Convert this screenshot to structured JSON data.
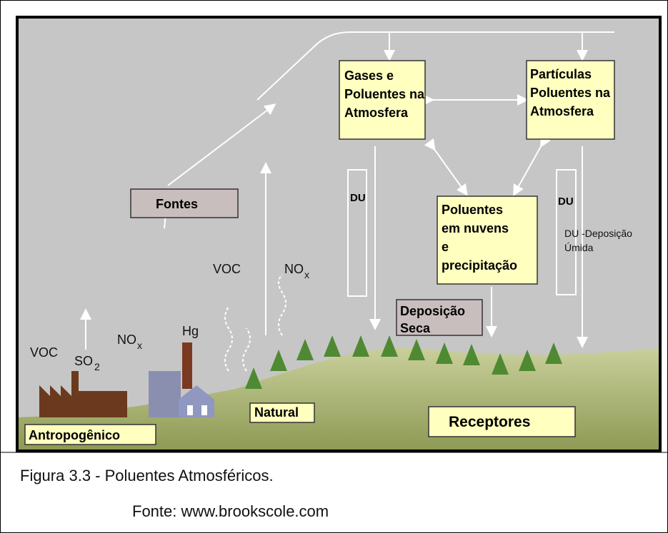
{
  "diagram": {
    "boxes": {
      "gases": [
        "Gases e",
        "Poluentes na",
        "Atmosfera"
      ],
      "particulas": [
        "Partículas",
        "Poluentes na",
        "Atmosfera"
      ],
      "nuvens": [
        "Poluentes",
        "em nuvens",
        "e",
        "precipitação"
      ],
      "fontes": "Fontes",
      "seca": [
        "Deposição",
        "Seca"
      ],
      "natural": "Natural",
      "receptores": "Receptores",
      "antropogenico": "Antropogênico"
    },
    "du_left": "DU",
    "du_right": "DU",
    "du_note": [
      "DU -Deposição",
      "Úmida"
    ],
    "labels": {
      "voc_natural": "VOC",
      "nox_natural": {
        "main": "NO",
        "sub": "x"
      },
      "voc_factory": "VOC",
      "so2": {
        "main": "SO",
        "sub": "2"
      },
      "nox_factory": {
        "main": "NO",
        "sub": "x"
      },
      "hg": "Hg"
    }
  },
  "caption": {
    "title": "Figura 3.3 - Poluentes Atmosféricos.",
    "source": "Fonte: www.brookscole.com"
  }
}
